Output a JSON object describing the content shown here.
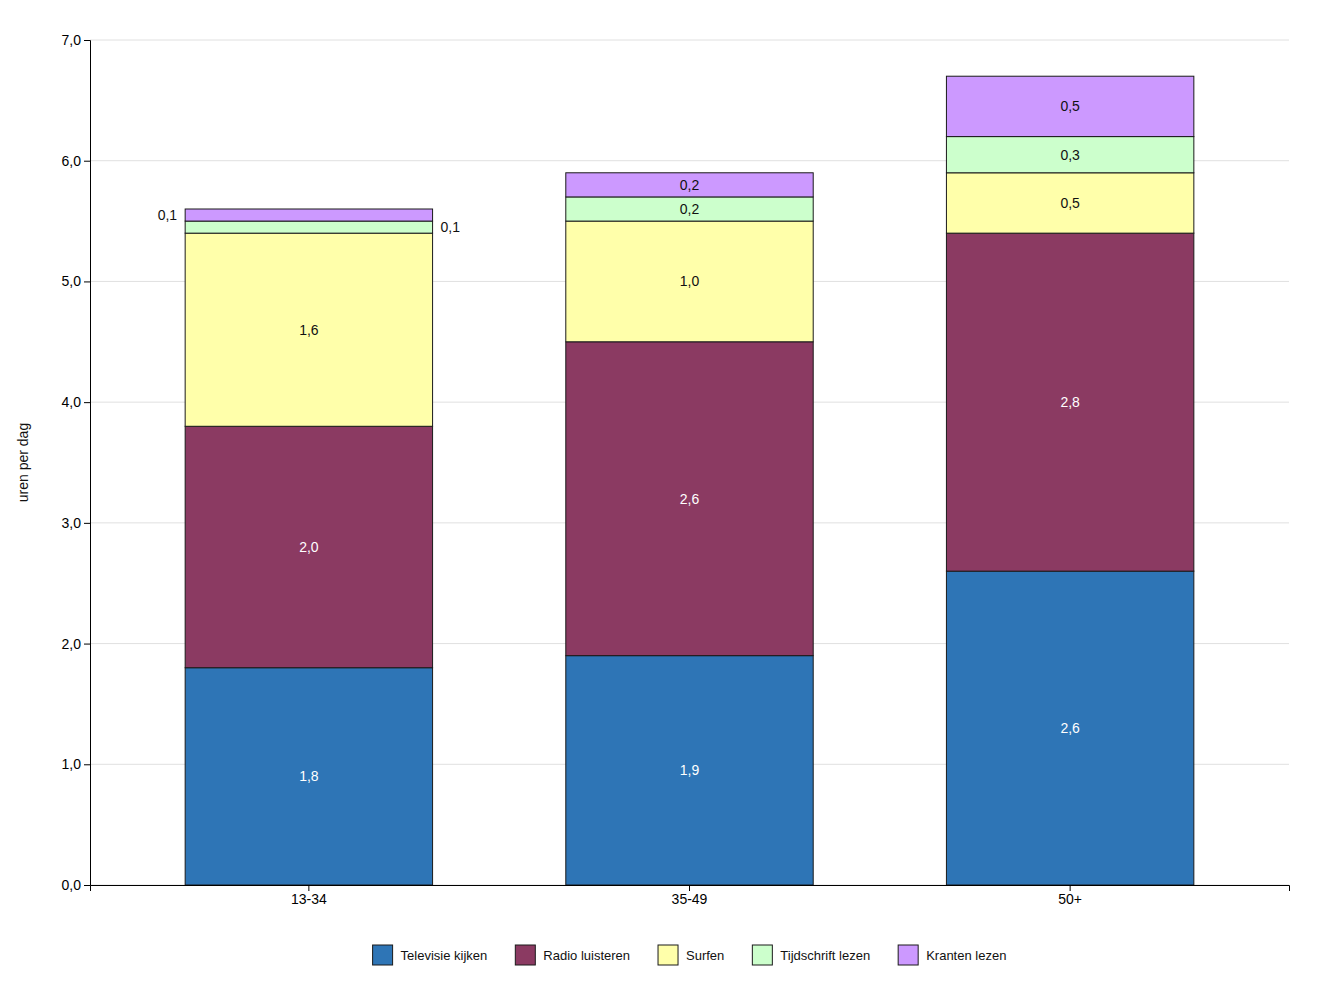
{
  "chart_data": {
    "type": "bar",
    "stacked": true,
    "categories": [
      "13-34",
      "35-49",
      "50+"
    ],
    "series": [
      {
        "name": "Televisie kijken",
        "color": "#2E75B6",
        "values": [
          1.8,
          1.9,
          2.6
        ],
        "value_labels": [
          "1,8",
          "1,9",
          "2,6"
        ]
      },
      {
        "name": "Radio luisteren",
        "color": "#8B3A62",
        "values": [
          2.0,
          2.6,
          2.8
        ],
        "value_labels": [
          "2,0",
          "2,6",
          "2,8"
        ]
      },
      {
        "name": "Surfen",
        "color": "#FFFFAA",
        "values": [
          1.6,
          1.0,
          0.5
        ],
        "value_labels": [
          "1,6",
          "1,0",
          "0,5"
        ]
      },
      {
        "name": "Tijdschrift lezen",
        "color": "#CCFFCC",
        "values": [
          0.1,
          0.2,
          0.3
        ],
        "value_labels": [
          "0,1",
          "0,2",
          "0,3"
        ]
      },
      {
        "name": "Kranten lezen",
        "color": "#CC99FF",
        "values": [
          0.1,
          0.2,
          0.5
        ],
        "value_labels": [
          "0,1",
          "0,2",
          "0,5"
        ]
      }
    ],
    "ylabel": "uren per dag",
    "ylim": [
      0,
      7.0
    ],
    "yticks": [
      {
        "value": 0.0,
        "label": "0,0"
      },
      {
        "value": 1.0,
        "label": "1,0"
      },
      {
        "value": 2.0,
        "label": "2,0"
      },
      {
        "value": 3.0,
        "label": "3,0"
      },
      {
        "value": 4.0,
        "label": "4,0"
      },
      {
        "value": 5.0,
        "label": "5,0"
      },
      {
        "value": 6.0,
        "label": "6,0"
      },
      {
        "value": 7.0,
        "label": "7,0"
      }
    ],
    "grid": true,
    "data_labels": true,
    "legend": "bottom"
  }
}
